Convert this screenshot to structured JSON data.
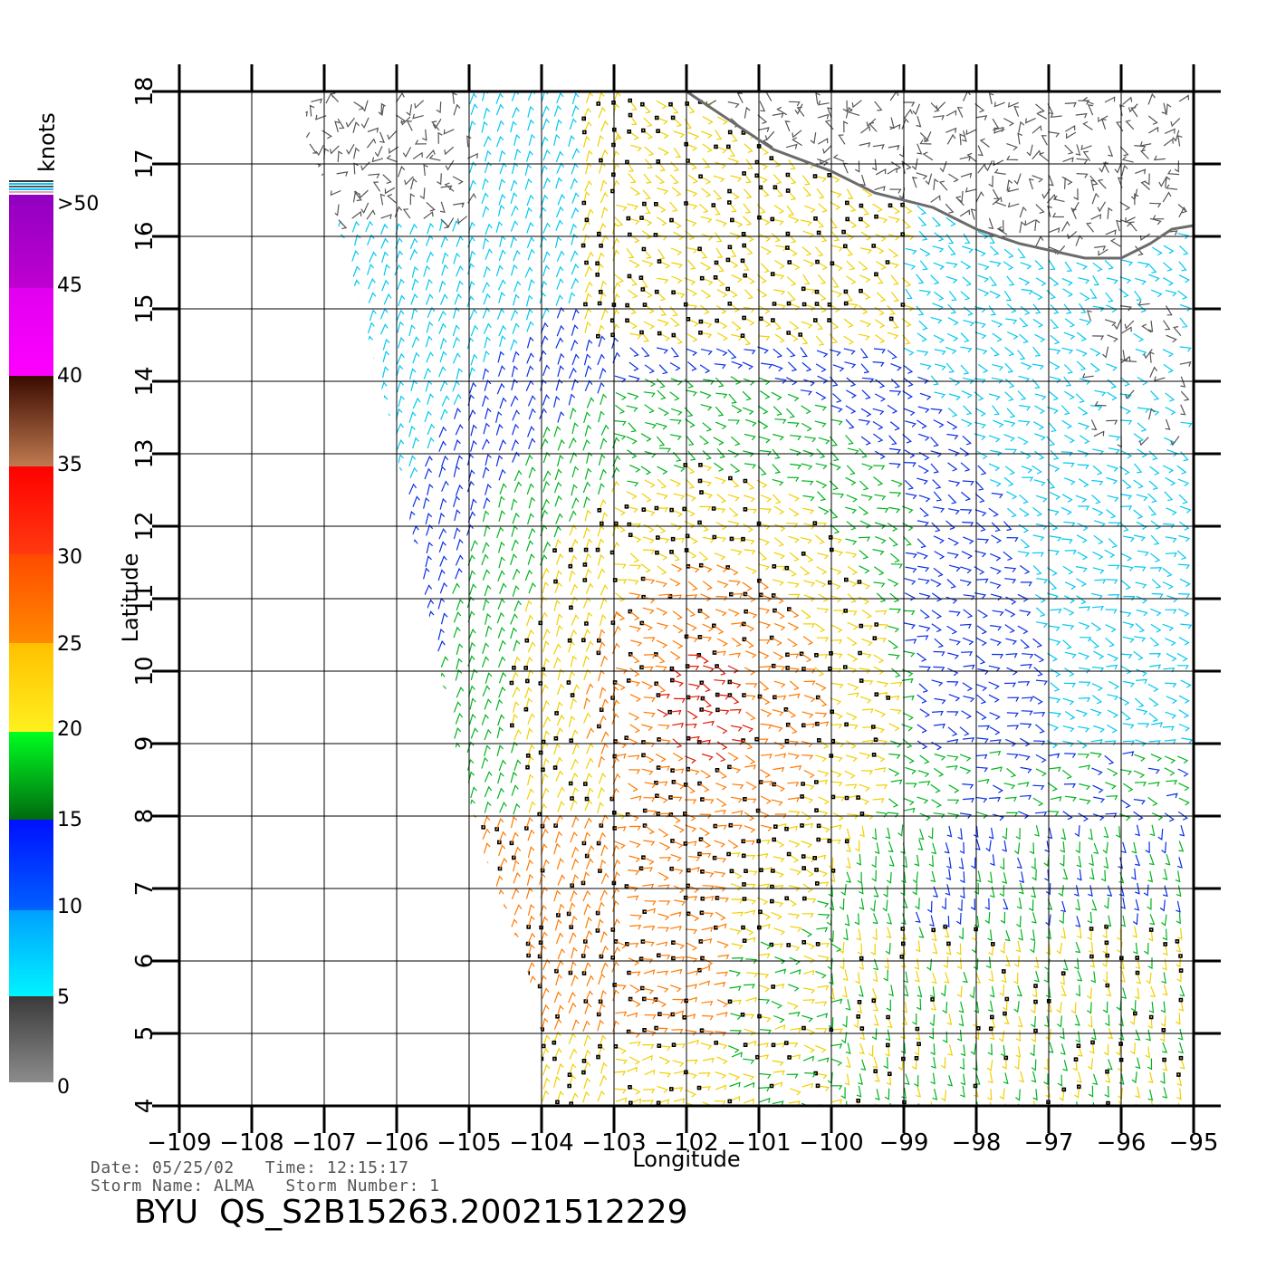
{
  "legend": {
    "unit": "knots",
    "labels": [
      ">50",
      "45",
      "40",
      "35",
      "30",
      "25",
      "20",
      "15",
      "10",
      "5",
      "0"
    ]
  },
  "axes": {
    "x_title": "Longitude",
    "y_title": "Latitude",
    "x_ticks": [
      "−109",
      "−108",
      "−107",
      "−106",
      "−105",
      "−104",
      "−103",
      "−102",
      "−101",
      "−100",
      "−99",
      "−98",
      "−97",
      "−96",
      "−95"
    ],
    "y_ticks": [
      "4",
      "5",
      "6",
      "7",
      "8",
      "9",
      "10",
      "11",
      "12",
      "13",
      "14",
      "15",
      "16",
      "17",
      "18"
    ]
  },
  "metadata": {
    "date_line": "Date: 05/25/02   Time: 12:15:17",
    "storm_line": "Storm Name: ALMA   Storm Number: 1",
    "file_id": "BYU  QS_S2B15263.20021512229"
  },
  "chart_data": {
    "type": "wind-barb map",
    "xlabel": "Longitude",
    "ylabel": "Latitude",
    "xlim": [
      -109,
      -95
    ],
    "ylim": [
      4,
      18
    ],
    "colorbar": {
      "unit": "knots",
      "range": [
        0,
        50
      ],
      "bands": [
        {
          "range": [
            0,
            5
          ],
          "color": "#555555"
        },
        {
          "range": [
            5,
            10
          ],
          "color": "#00d8ff"
        },
        {
          "range": [
            10,
            15
          ],
          "color": "#0a2fe6"
        },
        {
          "range": [
            15,
            20
          ],
          "color": "#00c81e"
        },
        {
          "range": [
            20,
            25
          ],
          "color": "#ffd400"
        },
        {
          "range": [
            25,
            30
          ],
          "color": "#ff7a00"
        },
        {
          "range": [
            30,
            35
          ],
          "color": "#ff2000"
        },
        {
          "range": [
            35,
            40
          ],
          "color": "#7a3f2a"
        },
        {
          "range": [
            40,
            45
          ],
          "color": "#ff00ff"
        },
        {
          "range": [
            45,
            50
          ],
          "color": "#a400c8"
        },
        {
          "range": [
            50,
            60
          ],
          "color": "#5a00c8"
        }
      ]
    },
    "coastline": [
      [
        -107.2,
        18.0
      ],
      [
        -102.0,
        18.0
      ],
      [
        -101.4,
        17.6
      ],
      [
        -100.8,
        17.2
      ],
      [
        -100.0,
        16.9
      ],
      [
        -99.4,
        16.6
      ],
      [
        -98.6,
        16.4
      ],
      [
        -98.0,
        16.1
      ],
      [
        -97.4,
        15.9
      ],
      [
        -96.5,
        15.7
      ],
      [
        -96.0,
        15.7
      ],
      [
        -95.6,
        15.9
      ],
      [
        -95.3,
        16.1
      ],
      [
        -95.0,
        16.15
      ]
    ],
    "swath": [
      [
        -107.0,
        18.0
      ],
      [
        -95.0,
        18.0
      ],
      [
        -95.0,
        4.0
      ],
      [
        -104.0,
        4.0
      ],
      [
        -104.0,
        5.0
      ],
      [
        -104.2,
        5.9
      ],
      [
        -104.8,
        7.5
      ],
      [
        -105.2,
        9.0
      ],
      [
        -105.5,
        10.5
      ],
      [
        -105.8,
        12.0
      ],
      [
        -106.1,
        13.5
      ],
      [
        -106.5,
        15.0
      ],
      [
        -106.9,
        16.5
      ],
      [
        -107.3,
        17.5
      ],
      [
        -107.2,
        18.0
      ]
    ]
  }
}
